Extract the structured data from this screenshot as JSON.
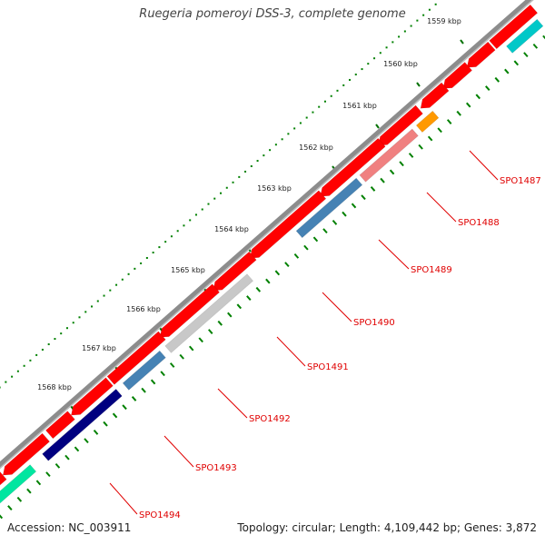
{
  "title": "Ruegeria pomeroyi DSS-3, complete genome",
  "footer": {
    "accession": "Accession: NC_003911",
    "summary": "Topology: circular; Length: 4,109,442 bp; Genes: 3,872"
  },
  "colors": {
    "backbone": "#8c8c8c",
    "forward": "#ff0000",
    "tick_inner": "#007000",
    "tick_outer": "#007700",
    "label_line": "#e00000"
  },
  "ticks": [
    "1559 kbp",
    "1560 kbp",
    "1561 kbp",
    "1562 kbp",
    "1563 kbp",
    "1564 kbp",
    "1565 kbp",
    "1566 kbp",
    "1567 kbp",
    "1568 kbp"
  ],
  "genes": [
    {
      "label": "SPO1487",
      "color": "#00c8c8"
    },
    {
      "label": "SPO1488",
      "color": "#ff9900"
    },
    {
      "label": "SPO1489",
      "color": "#f08080"
    },
    {
      "label": "SPO1490",
      "color": "#4682b4"
    },
    {
      "label": "SPO1491",
      "color": "#ff0000"
    },
    {
      "label": "SPO1492",
      "color": "#c8c8c8"
    },
    {
      "label": "SPO1493",
      "color": "#4682b4"
    },
    {
      "label": "SPO1494",
      "color": "#000080"
    }
  ]
}
